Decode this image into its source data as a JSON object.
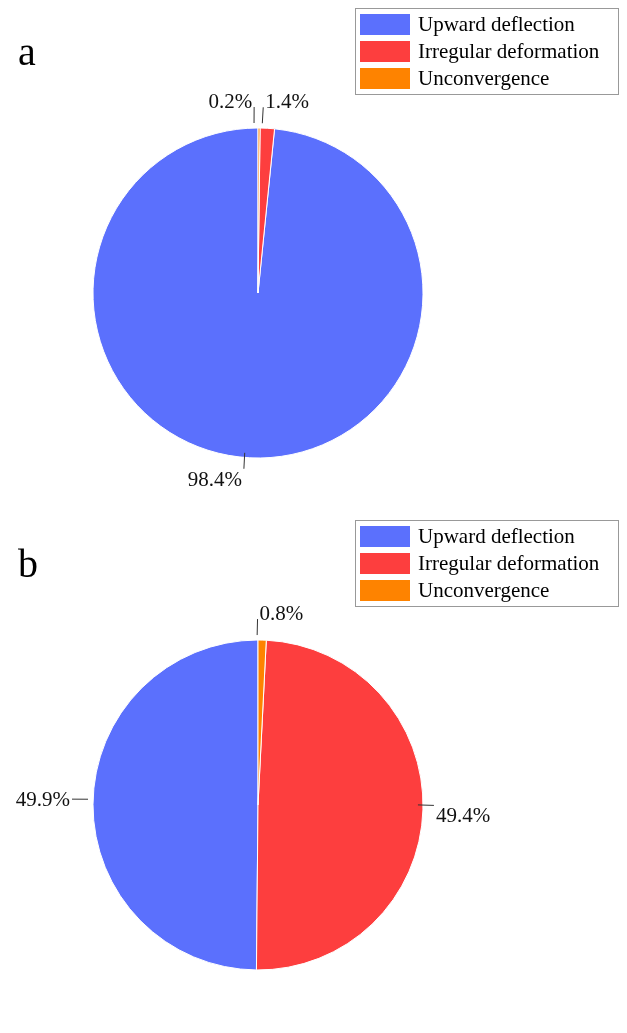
{
  "chart_data": [
    {
      "type": "pie",
      "title": "a",
      "categories": [
        "Upward deflection",
        "Irregular deformation",
        "Unconvergence"
      ],
      "values": [
        98.4,
        1.4,
        0.2
      ],
      "colors": [
        "#5b70fd",
        "#fd3e3e",
        "#fe8300"
      ],
      "value_labels": [
        "98.4%",
        "1.4%",
        "0.2%"
      ],
      "legend": "top right"
    },
    {
      "type": "pie",
      "title": "b",
      "categories": [
        "Upward deflection",
        "Irregular deformation",
        "Unconvergence"
      ],
      "values": [
        49.9,
        49.4,
        0.8
      ],
      "colors": [
        "#5b70fd",
        "#fd3e3e",
        "#fe8300"
      ],
      "value_labels": [
        "49.9%",
        "49.4%",
        "0.8%"
      ],
      "legend": "top right"
    }
  ]
}
